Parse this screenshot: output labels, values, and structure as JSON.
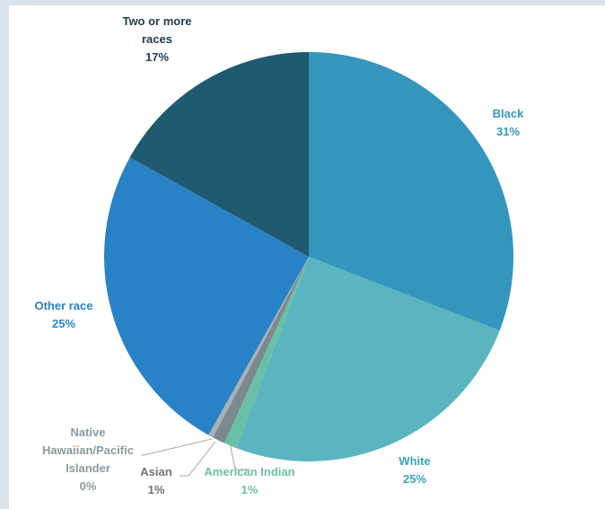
{
  "chart_data": {
    "type": "pie",
    "title": "",
    "slices": [
      {
        "name": "Black",
        "line1": "Black",
        "line2": "",
        "pct_label": "31%",
        "value": 31,
        "color": "#3596bd",
        "label_color": "#3596bd"
      },
      {
        "name": "White",
        "line1": "White",
        "line2": "",
        "pct_label": "25%",
        "value": 25,
        "color": "#5ab5c0",
        "label_color": "#3aa3b8"
      },
      {
        "name": "American Indian",
        "line1": "American Indian",
        "line2": "",
        "pct_label": "1%",
        "value": 1,
        "color": "#6ac0a6",
        "label_color": "#6ac0a6"
      },
      {
        "name": "Asian",
        "line1": "Asian",
        "line2": "",
        "pct_label": "1%",
        "value": 1,
        "color": "#7a8a8f",
        "label_color": "#6b7379"
      },
      {
        "name": "Native Hawaiian/Pacific Islander",
        "line1": "Native",
        "line2": "Hawaiian/Pacific",
        "line3": "Islander",
        "pct_label": "0%",
        "value": 0.4,
        "color": "#a7b0b5",
        "label_color": "#8a9aa3"
      },
      {
        "name": "Other race",
        "line1": "Other race",
        "line2": "",
        "pct_label": "25%",
        "value": 25,
        "color": "#2a82c6",
        "label_color": "#2a82c6"
      },
      {
        "name": "Two or more races",
        "line1": "Two or more",
        "line2": "races",
        "pct_label": "17%",
        "value": 17,
        "color": "#1f5a70",
        "label_color": "#1f3b4a"
      }
    ],
    "legend": "none"
  }
}
